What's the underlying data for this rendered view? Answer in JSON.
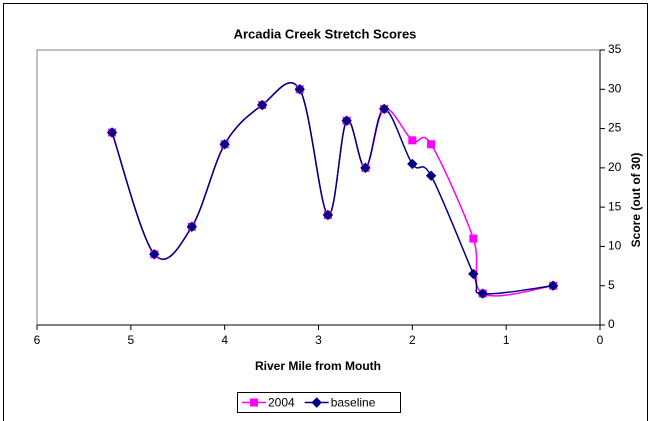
{
  "chart_data": {
    "type": "line",
    "title": "Arcadia Creek Stretch Scores",
    "x_label": "River Mile from Mouth",
    "y_label": "Score (out of 30)",
    "x": [
      5.2,
      4.75,
      4.35,
      4.0,
      3.6,
      3.2,
      2.9,
      2.7,
      2.5,
      2.3,
      2.0,
      1.8,
      1.35,
      1.25,
      0.5
    ],
    "series": [
      {
        "name": "2004",
        "color": "#ff00ff",
        "marker": "square",
        "values": [
          24.5,
          9,
          12.5,
          23,
          28,
          30,
          14,
          26,
          20,
          27.5,
          23.5,
          23,
          11,
          4,
          5
        ]
      },
      {
        "name": "baseline",
        "color": "#000080",
        "marker": "diamond",
        "values": [
          24.5,
          9,
          12.5,
          23,
          28,
          30,
          14,
          26,
          20,
          27.5,
          20.5,
          19,
          6.5,
          4,
          5
        ]
      }
    ],
    "xlim": [
      6,
      0
    ],
    "xticks": [
      6,
      5,
      4,
      3,
      2,
      1,
      0
    ],
    "ylim": [
      0,
      35
    ],
    "yticks": [
      0,
      5,
      10,
      15,
      20,
      25,
      30,
      35
    ],
    "y_axis_side": "right",
    "smooth": true,
    "legend": "bottom"
  }
}
